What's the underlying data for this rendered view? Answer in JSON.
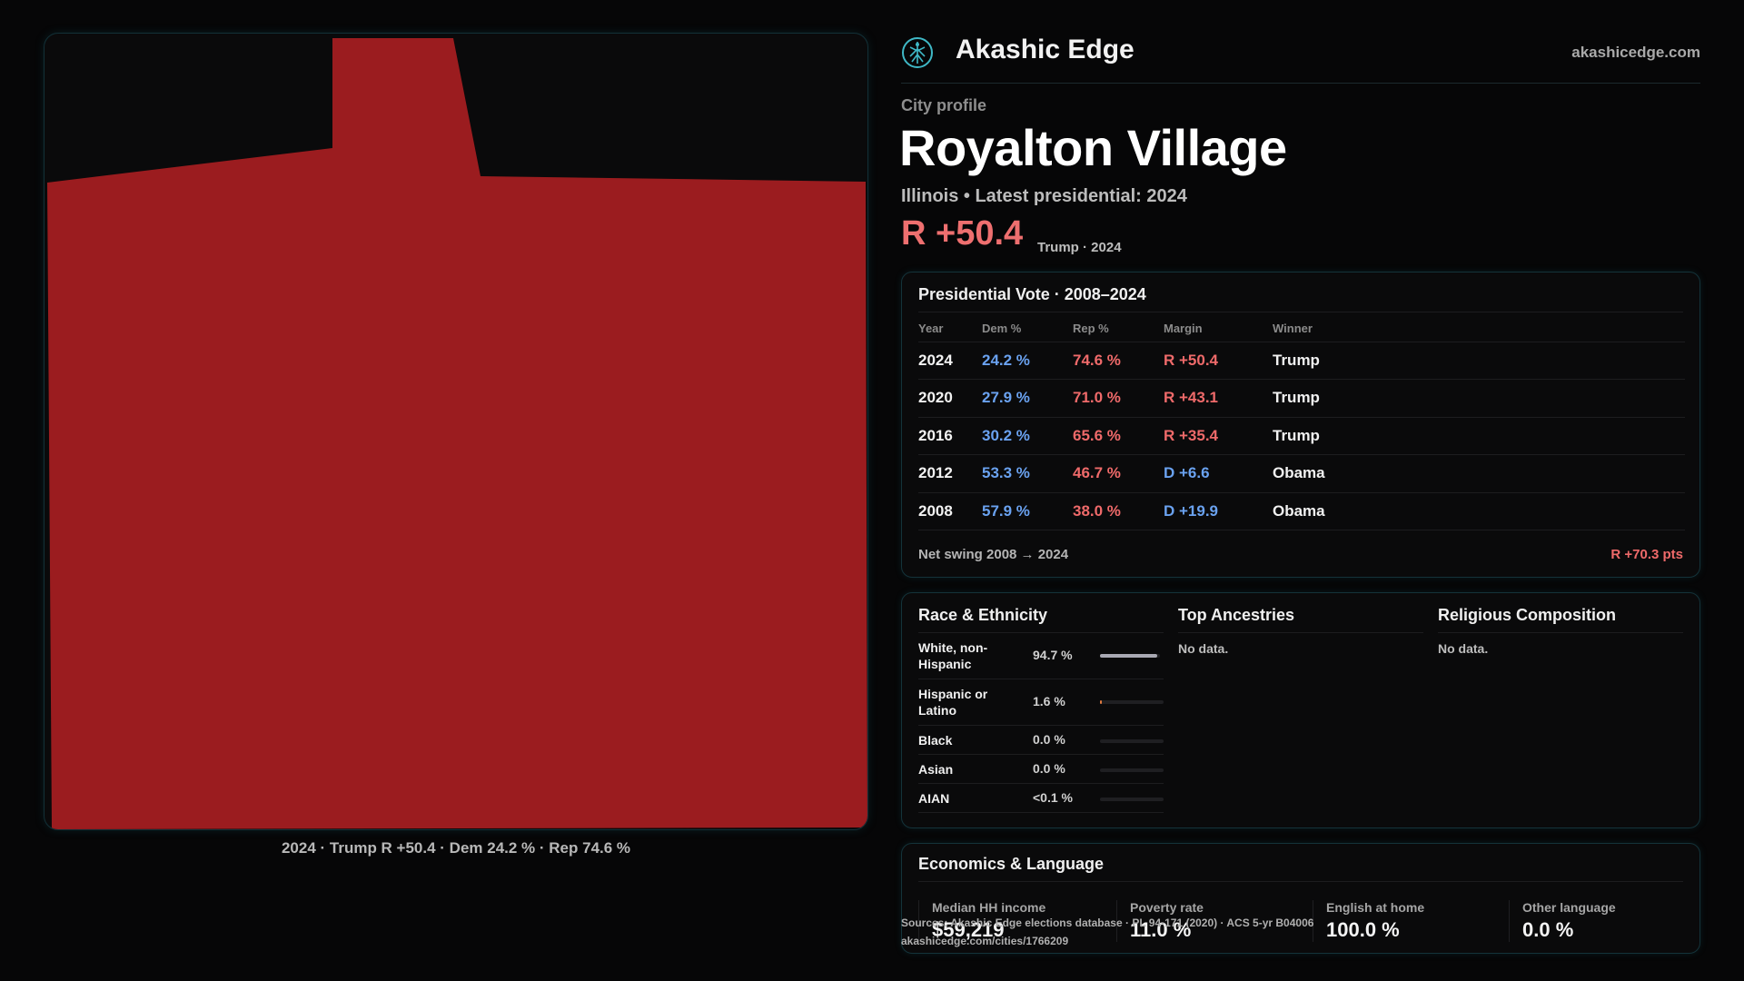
{
  "brand": {
    "name": "Akashic Edge",
    "url": "akashicedge.com",
    "logo_icon": "tree-of-life-icon",
    "accent": "#3fb8c6"
  },
  "map": {
    "fill_color": "#9b1c1f",
    "caption": "2024 · Trump R +50.4 · Dem 24.2 % · Rep 74.6 %"
  },
  "header": {
    "eyebrow": "City profile",
    "title": "Royalton Village",
    "subtitle": "Illinois • Latest presidential: 2024",
    "margin": "R +50.4",
    "margin_note": "Trump · 2024"
  },
  "presidential": {
    "title": "Presidential Vote · 2008–2024",
    "columns": [
      "Year",
      "Dem %",
      "Rep %",
      "Margin",
      "Winner"
    ],
    "rows": [
      {
        "year": "2024",
        "dem": "24.2 %",
        "rep": "74.6 %",
        "margin": "R +50.4",
        "party": "R",
        "winner": "Trump"
      },
      {
        "year": "2020",
        "dem": "27.9 %",
        "rep": "71.0 %",
        "margin": "R +43.1",
        "party": "R",
        "winner": "Trump"
      },
      {
        "year": "2016",
        "dem": "30.2 %",
        "rep": "65.6 %",
        "margin": "R +35.4",
        "party": "R",
        "winner": "Trump"
      },
      {
        "year": "2012",
        "dem": "53.3 %",
        "rep": "46.7 %",
        "margin": "D +6.6",
        "party": "D",
        "winner": "Obama"
      },
      {
        "year": "2008",
        "dem": "57.9 %",
        "rep": "38.0 %",
        "margin": "D +19.9",
        "party": "D",
        "winner": "Obama"
      }
    ],
    "swing_label": "Net swing 2008 → 2024",
    "swing_value": "R +70.3 pts"
  },
  "race": {
    "title": "Race & Ethnicity",
    "rows": [
      {
        "label": "White, non-Hispanic",
        "pct": "94.7 %",
        "share": 0.947,
        "color": "#a9a9b3"
      },
      {
        "label": "Hispanic or Latino",
        "pct": "1.6 %",
        "share": 0.016,
        "color": "#e07a3f"
      },
      {
        "label": "Black",
        "pct": "0.0 %",
        "share": 0,
        "color": "#a9a9b3"
      },
      {
        "label": "Asian",
        "pct": "0.0 %",
        "share": 0,
        "color": "#a9a9b3"
      },
      {
        "label": "AIAN",
        "pct": "<0.1 %",
        "share": 0,
        "color": "#a9a9b3"
      }
    ]
  },
  "ancestries": {
    "title": "Top Ancestries",
    "empty": "No data."
  },
  "religion": {
    "title": "Religious Composition",
    "empty": "No data."
  },
  "economics": {
    "title": "Economics & Language",
    "stats": [
      {
        "label": "Median HH income",
        "value": "$59,219"
      },
      {
        "label": "Poverty rate",
        "value": "11.0 %"
      },
      {
        "label": "English at home",
        "value": "100.0 %"
      },
      {
        "label": "Other language",
        "value": "0.0 %"
      }
    ]
  },
  "source": {
    "line1": "Sources: Akashic Edge elections database · PL 94-171 (2020) · ACS 5-yr B04006",
    "line2": "akashicedge.com/cities/1766209"
  }
}
